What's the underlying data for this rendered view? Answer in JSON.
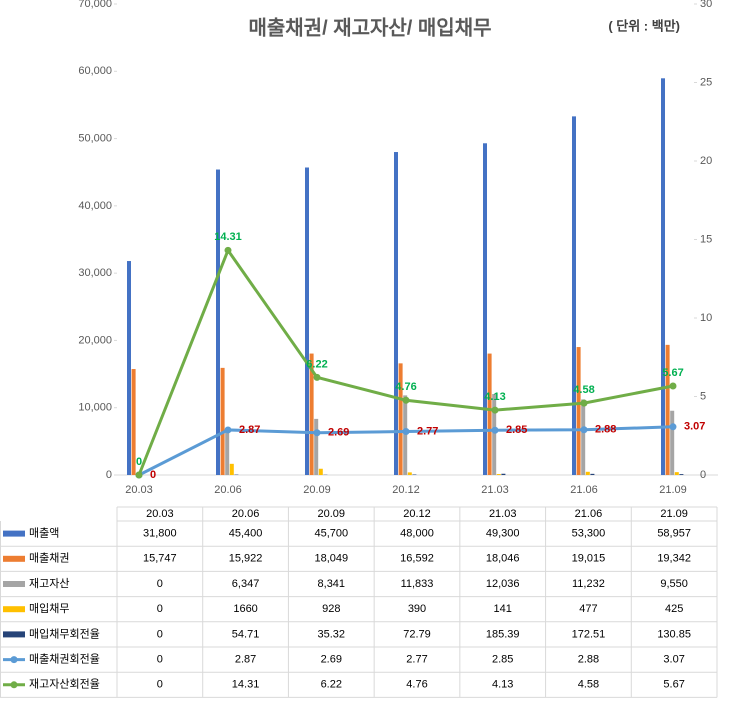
{
  "chart_data": {
    "type": "bar",
    "title": "매출채권/ 재고자산/ 매입채무",
    "subtitle": "( 단위 : 백만)",
    "categories": [
      "20.03",
      "20.06",
      "20.09",
      "20.12",
      "21.03",
      "21.06",
      "21.09"
    ],
    "series": [
      {
        "name": "매출액",
        "color": "#4472c4",
        "values": [
          31800,
          45400,
          45700,
          48000,
          49300,
          53300,
          58957
        ],
        "value_labels": [
          "31,800",
          "45,400",
          "45,700",
          "48,000",
          "49,300",
          "53,300",
          "58,957"
        ]
      },
      {
        "name": "매출채권",
        "color": "#ed7d31",
        "values": [
          15747,
          15922,
          18049,
          16592,
          18046,
          19015,
          19342
        ],
        "value_labels": [
          "15,747",
          "15,922",
          "18,049",
          "16,592",
          "18,046",
          "19,015",
          "19,342"
        ]
      },
      {
        "name": "재고자산",
        "color": "#a5a5a5",
        "values": [
          0,
          6347,
          8341,
          11833,
          12036,
          11232,
          9550
        ],
        "value_labels": [
          "0",
          "6,347",
          "8,341",
          "11,833",
          "12,036",
          "11,232",
          "9,550"
        ]
      },
      {
        "name": "매입채무",
        "color": "#ffc000",
        "values": [
          0,
          1660,
          928,
          390,
          141,
          477,
          425
        ]
      },
      {
        "name": "매입채무회전율",
        "color": "#264478",
        "values": [
          0,
          54.71,
          35.32,
          72.79,
          185.39,
          172.51,
          130.85
        ]
      },
      {
        "name": "매출채권회전율",
        "color": "#5b9bd5",
        "type": "line",
        "axis": "y2",
        "label_color": "#c00000",
        "values": [
          0,
          2.87,
          2.69,
          2.77,
          2.85,
          2.88,
          3.07
        ]
      },
      {
        "name": "재고자산회전율",
        "color": "#70ad47",
        "type": "line",
        "axis": "y2",
        "label_color": "#00b050",
        "values": [
          0,
          14.31,
          6.22,
          4.76,
          4.13,
          4.58,
          5.67
        ]
      }
    ],
    "ylim": [
      0,
      70000
    ],
    "yticks": [
      0,
      {
        "value": 10000,
        "label": "10,000"
      },
      {
        "value": 20000,
        "label": "20,000"
      },
      {
        "value": 30000,
        "label": "30,000"
      },
      {
        "value": 40000,
        "label": "40,000"
      },
      {
        "value": 50000,
        "label": "50,000"
      },
      {
        "value": 60000,
        "label": "60,000"
      },
      {
        "value": 70000,
        "label": "70,000"
      }
    ],
    "y2lim": [
      0,
      30
    ],
    "y2ticks": [
      0,
      5,
      10,
      15,
      20,
      25,
      30
    ]
  }
}
